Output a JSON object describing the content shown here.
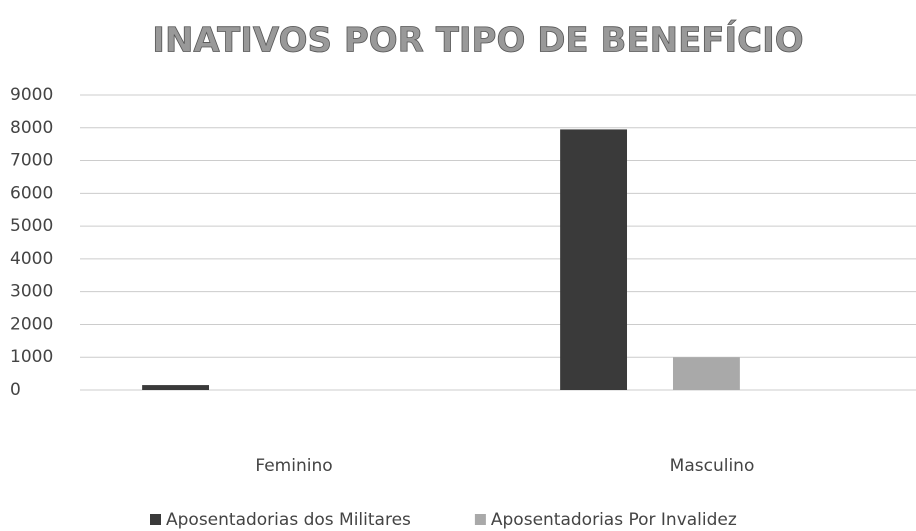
{
  "chart_data": {
    "type": "bar",
    "title": "INATIVOS POR TIPO DE BENEFÍCIO",
    "categories": [
      "Feminino",
      "Masculino"
    ],
    "series": [
      {
        "name": "Aposentadorias dos Militares",
        "color": "#3a3a3a",
        "values": [
          150,
          7950
        ]
      },
      {
        "name": "Aposentadorias Por Invalidez",
        "color": "#a9a9a9",
        "values": [
          0,
          1000
        ]
      }
    ],
    "ylim": [
      0,
      9000
    ],
    "yticks": [
      0,
      1000,
      2000,
      3000,
      4000,
      5000,
      6000,
      7000,
      8000,
      9000
    ],
    "grid": true,
    "legend": "bottom"
  }
}
